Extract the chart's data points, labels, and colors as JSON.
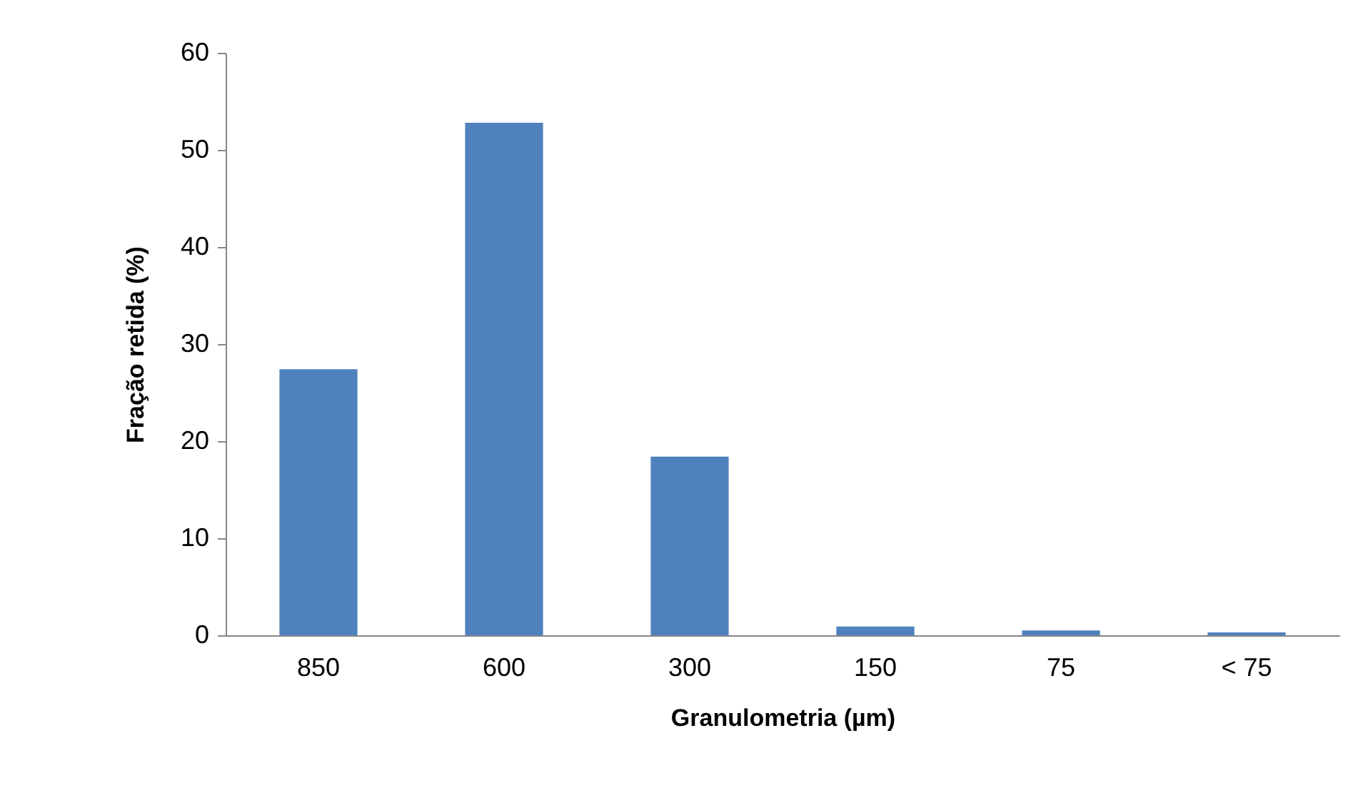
{
  "chart_data": {
    "type": "bar",
    "xlabel": "Granulometria (µm)",
    "ylabel": "Fração retida (%)",
    "categories": [
      "850",
      "600",
      "300",
      "150",
      "75",
      "< 75"
    ],
    "values": [
      27.4,
      52.8,
      18.4,
      0.9,
      0.5,
      0.3
    ],
    "color": "#4f81bd",
    "ylim": [
      0,
      60
    ],
    "yticks": [
      0,
      10,
      20,
      30,
      40,
      50,
      60
    ],
    "grid": false
  }
}
